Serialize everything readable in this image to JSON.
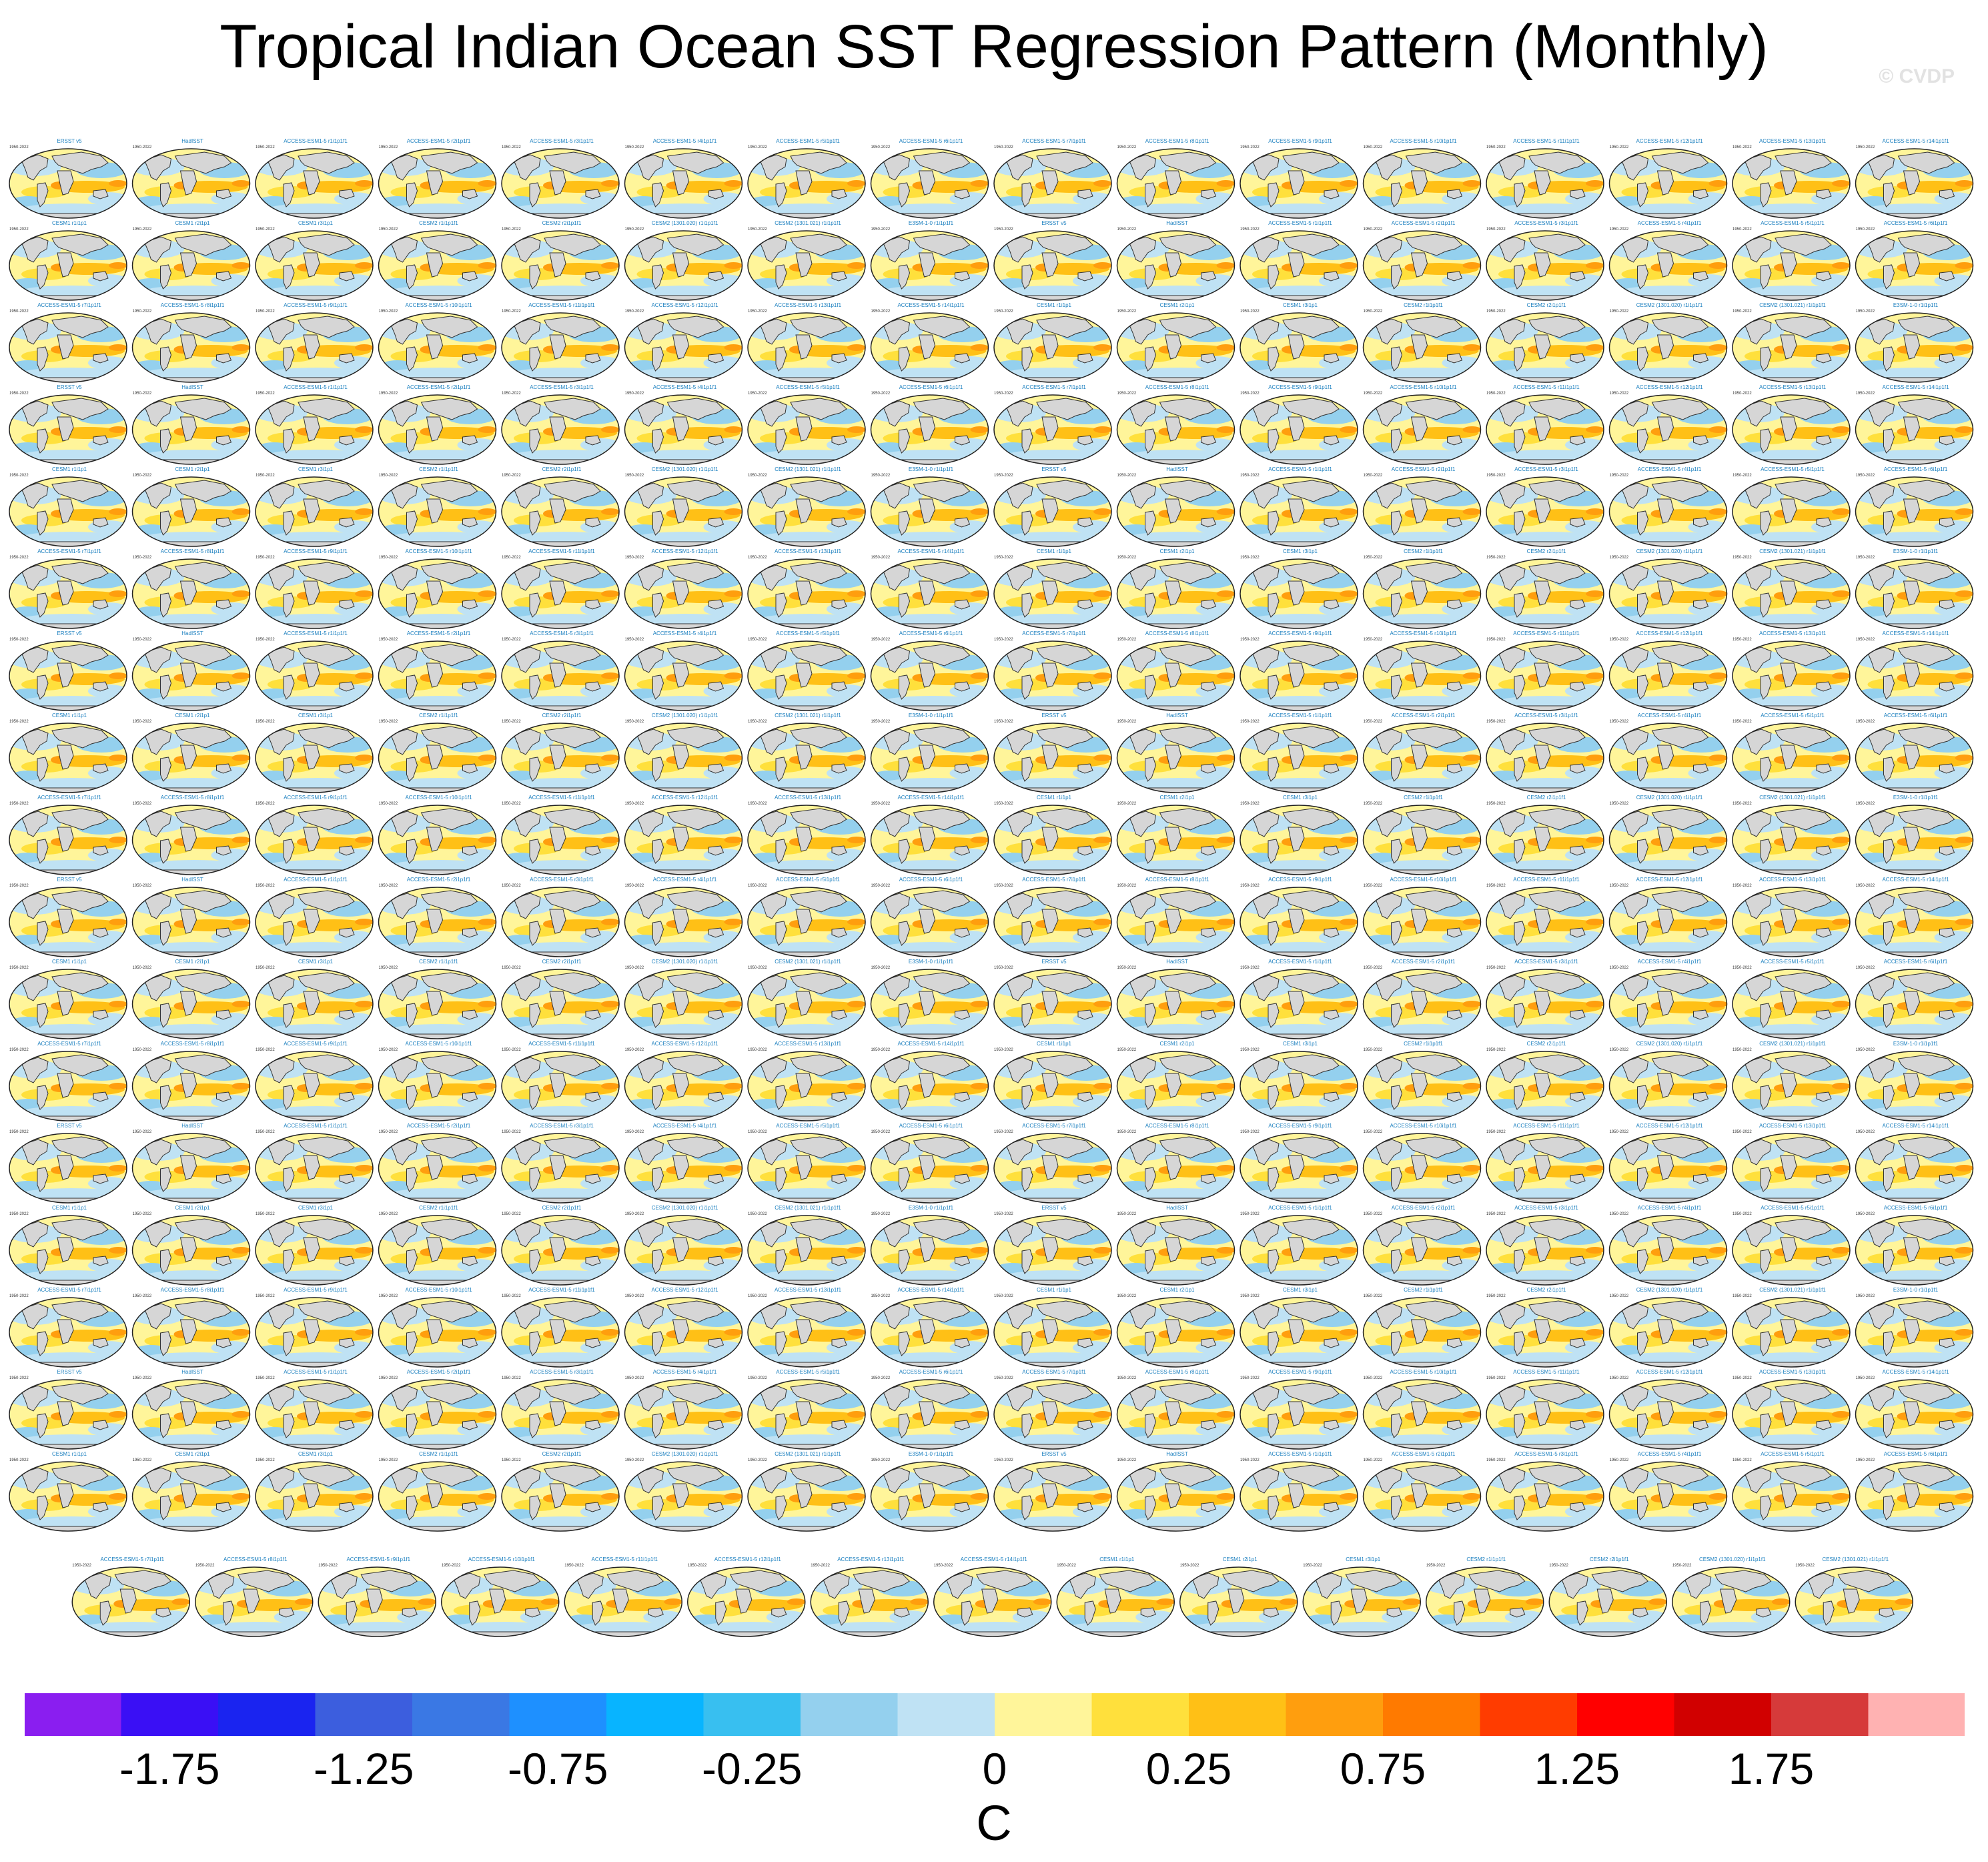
{
  "title": "Tropical Indian Ocean SST Regression Pattern (Monthly)",
  "watermark": "© CVDP",
  "panel_period": "1950-2022",
  "panel_titles": [
    "ERSST v5",
    "HadISST",
    "ACCESS-ESM1-5 r1i1p1f1",
    "ACCESS-ESM1-5 r2i1p1f1",
    "ACCESS-ESM1-5 r3i1p1f1",
    "ACCESS-ESM1-5 r4i1p1f1",
    "ACCESS-ESM1-5 r5i1p1f1",
    "ACCESS-ESM1-5 r6i1p1f1",
    "ACCESS-ESM1-5 r7i1p1f1",
    "ACCESS-ESM1-5 r8i1p1f1",
    "ACCESS-ESM1-5 r9i1p1f1",
    "ACCESS-ESM1-5 r10i1p1f1",
    "ACCESS-ESM1-5 r11i1p1f1",
    "ACCESS-ESM1-5 r12i1p1f1",
    "ACCESS-ESM1-5 r13i1p1f1",
    "ACCESS-ESM1-5 r14i1p1f1",
    "CESM1 r1i1p1",
    "CESM1 r2i1p1",
    "CESM1 r3i1p1",
    "CESM2 r1i1p1f1",
    "CESM2 r2i1p1f1",
    "CESM2 (1301.020) r1i1p1f1",
    "CESM2 (1301.021) r1i1p1f1",
    "E3SM-1-0 r1i1p1f1"
  ],
  "colorbar": {
    "levels": [
      -2.0,
      -1.75,
      -1.5,
      -1.25,
      -1.0,
      -0.75,
      -0.5,
      -0.25,
      0,
      0.25,
      0.5,
      0.75,
      1.0,
      1.25,
      1.5,
      1.75,
      2.0
    ],
    "colors": [
      "#8a1ef0",
      "#3a0ff5",
      "#1a24f0",
      "#3c5ede",
      "#3a78e4",
      "#1e90ff",
      "#08b4ff",
      "#38bff0",
      "#94d0ee",
      "#bfe2f4",
      "#fff59a",
      "#ffe03c",
      "#ffc016",
      "#ff9e0e",
      "#ff7a00",
      "#ff3c00",
      "#ff0000",
      "#d10000",
      "#d63a3a",
      "#ffb2b2"
    ],
    "labels": [
      "-1.75",
      "-1.25",
      "-0.75",
      "-0.25",
      "0",
      "0.25",
      "0.75",
      "1.25",
      "1.75"
    ],
    "units": "C"
  },
  "chart_data": {
    "type": "heatmap",
    "title": "Tropical Indian Ocean SST Regression Pattern (Monthly)",
    "description_grid": "panel grid of global SST regression maps",
    "panel_rows": 18,
    "panel_columns": 16,
    "last_row_panels": 15,
    "colorbar_units": "C",
    "colorbar_tick_labels": [
      -1.75,
      -1.25,
      -0.75,
      -0.25,
      0,
      0.25,
      0.75,
      1.25,
      1.75
    ],
    "value_range": [
      -2.0,
      2.0
    ]
  }
}
